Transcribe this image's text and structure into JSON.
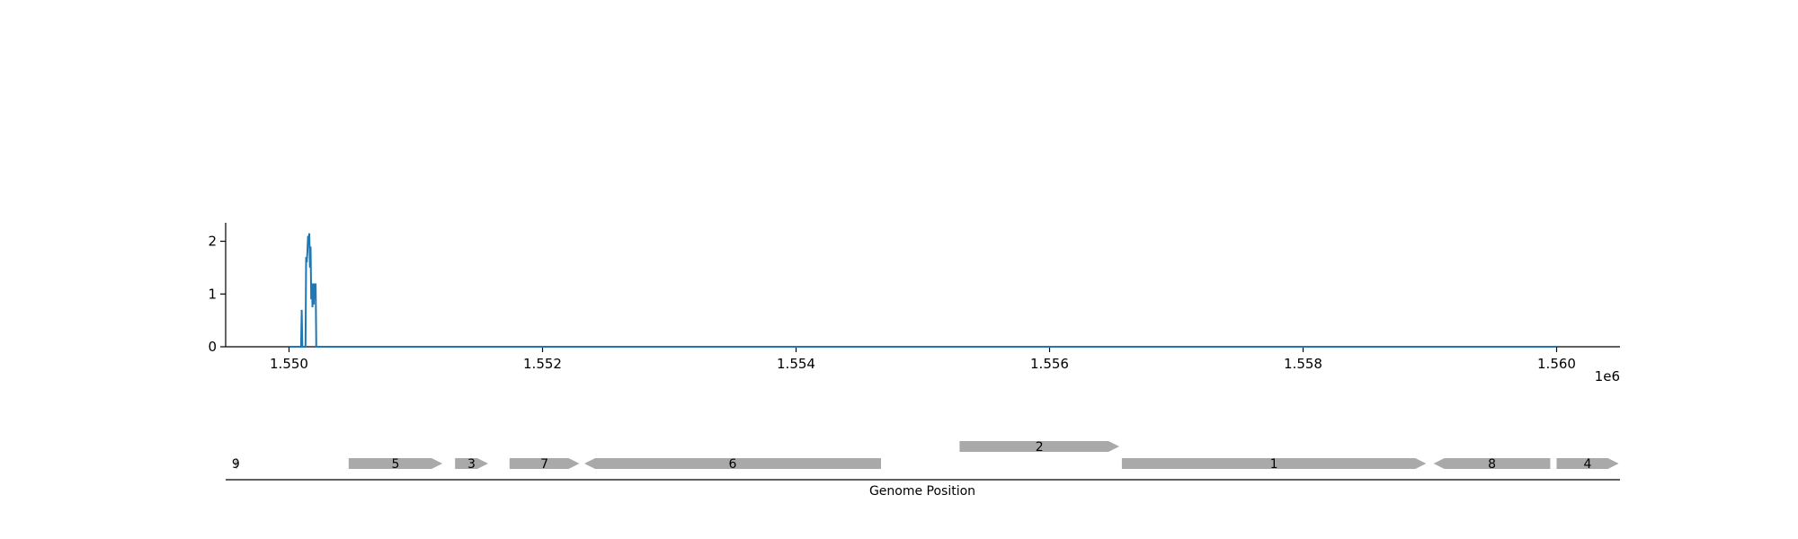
{
  "chart_data": [
    {
      "type": "line",
      "title": "",
      "xlabel": "",
      "ylabel": "",
      "x_offset_label": "1e6",
      "xlim": [
        1549500,
        1560500
      ],
      "ylim": [
        0,
        2.35
      ],
      "x_ticks": [
        1550000,
        1552000,
        1554000,
        1556000,
        1558000,
        1560000
      ],
      "x_tick_labels": [
        "1.550",
        "1.552",
        "1.554",
        "1.556",
        "1.558",
        "1.560"
      ],
      "y_ticks": [
        0,
        1,
        2
      ],
      "y_tick_labels": [
        "0",
        "1",
        "2"
      ],
      "grid": false,
      "color": "#1f77b4",
      "series": [
        {
          "x": [
            1550000,
            1550095,
            1550100,
            1550105,
            1550130,
            1550135,
            1550140,
            1550145,
            1550150,
            1550155,
            1550160,
            1550165,
            1550170,
            1550175,
            1550180,
            1550185,
            1550190,
            1550195,
            1550200,
            1550205,
            1550210,
            1550215,
            1550220,
            1550225,
            1560000
          ],
          "y": [
            0,
            0,
            0.7,
            0,
            0,
            1.7,
            1.6,
            1.8,
            2.1,
            2.05,
            2.15,
            1.5,
            1.9,
            0.9,
            1.2,
            0.75,
            1.2,
            0.8,
            1.2,
            1.0,
            1.2,
            0,
            0,
            0,
            0
          ]
        }
      ]
    },
    {
      "type": "gene_track",
      "xlabel": "Genome Position",
      "xlim": [
        1549500,
        1560500
      ],
      "color": "#a9a9a9",
      "genes": [
        {
          "label": "9",
          "start": 1549570,
          "end": 1549590,
          "strand": "-",
          "row": 0
        },
        {
          "label": "5",
          "start": 1550470,
          "end": 1551210,
          "strand": "+",
          "row": 0
        },
        {
          "label": "3",
          "start": 1551310,
          "end": 1551570,
          "strand": "+",
          "row": 0
        },
        {
          "label": "7",
          "start": 1551740,
          "end": 1552290,
          "strand": "+",
          "row": 0
        },
        {
          "label": "6",
          "start": 1552330,
          "end": 1554670,
          "strand": "-",
          "row": 0
        },
        {
          "label": "2",
          "start": 1555290,
          "end": 1556550,
          "strand": "+",
          "row": 1
        },
        {
          "label": "1",
          "start": 1556570,
          "end": 1558970,
          "strand": "+",
          "row": 0
        },
        {
          "label": "8",
          "start": 1559030,
          "end": 1559950,
          "strand": "-",
          "row": 0
        },
        {
          "label": "4",
          "start": 1560000,
          "end": 1560490,
          "strand": "+",
          "row": 0
        }
      ]
    }
  ]
}
